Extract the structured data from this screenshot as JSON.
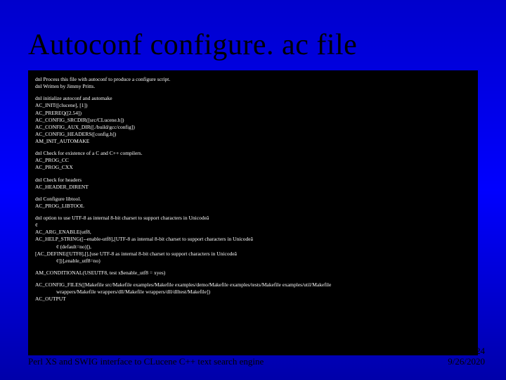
{
  "slide": {
    "title": "Autoconf configure. ac file",
    "footer_left": "Perl XS and SWIG interface to CLucene C++ text search engine",
    "page_number": "24",
    "date": "9/26/2020"
  },
  "code": {
    "p1_l1": "dnl Process this file with autoconf to produce a configure script.",
    "p1_l2": "dnl Written by Jimmy Pritts.",
    "p2_l1": "dnl initialize autoconf and automake",
    "p2_l2": "AC_INIT([clucene], [1])",
    "p2_l3": "AC_PREREQ([2.54])",
    "p2_l4": "AC_CONFIG_SRCDIR([src/CLucene.h])",
    "p2_l5": "AC_CONFIG_AUX_DIR([./build/gcc/config])",
    "p2_l6": "AC_CONFIG_HEADERS([config.h])",
    "p2_l7": "AM_INIT_AUTOMAKE",
    "p3_l1": "dnl Check for existence of a C and C++ compilers.",
    "p3_l2": "AC_PROG_CC",
    "p3_l3": "AC_PROG_CXX",
    "p4_l1": "dnl Check for headers",
    "p4_l2": "AC_HEADER_DIRENT",
    "p5_l1": "dnl Configure libtool.",
    "p5_l2": "AC_PROG_LIBTOOL",
    "p6_l1": "dnl option to use UTF-8 as internal 8-bit charset to support characters in Unicodeâ",
    "p6_l2": "  ¢",
    "p6_l3": "AC_ARG_ENABLE(utf8,",
    "p6_l4": "AC_HELP_STRING([--enable-utf8],[UTF-8 as internal 8-bit charset to support characters in Unicodeâ",
    "p6_l5": "¢ (default=no)]),",
    "p6_l6": " [AC_DEFINE([UTF8],[],[use UTF-8 as internal 8-bit charset to support characters in Unicodeâ",
    "p6_l7": "¢])],enable_utf8=no)",
    "p7_l1": "AM_CONDITIONAL(USEUTF8, test x$enable_utf8 = xyes)",
    "p8_l1": "AC_CONFIG_FILES([Makefile src/Makefile examples/Makefile examples/demo/Makefile examples/tests/Makefile examples/util/Makefile",
    "p8_l2": "wrappers/Makefile wrappers/dll/Makefile wrappers/dll/dlltest/Makefile])",
    "p8_l3": "AC_OUTPUT"
  },
  "colors": {
    "bg_top": "#0000cc",
    "bg_bottom": "#0000aa",
    "code_bg": "#000000",
    "code_fg": "#ffffff",
    "title_color": "#000000"
  }
}
